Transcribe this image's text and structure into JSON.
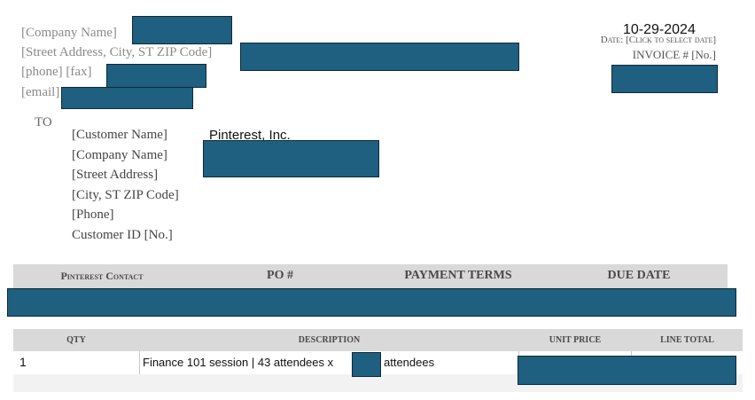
{
  "sender": {
    "company": "[Company Name]",
    "street": "[Street Address, City, ST  ZIP Code]",
    "phone_fax": "[phone]  [fax]",
    "email": "[email]"
  },
  "invoice_meta": {
    "date_value": "10-29-2024",
    "date_label": "Date: [Click to select date]",
    "invoice_no": "INVOICE # [No.]"
  },
  "to": {
    "label": "TO",
    "customer_name": "[Customer Name]",
    "company_name": "[Company Name]",
    "street": "[Street Address]",
    "city": "[City, ST  ZIP Code]",
    "phone": "[Phone]",
    "customer_id": "Customer ID [No.]",
    "filled_customer": "Pinterest, Inc."
  },
  "info_header": {
    "contact": "Pinterest Contact",
    "po": "PO #",
    "terms": "PAYMENT TERMS",
    "due": "DUE DATE"
  },
  "line_header": {
    "qty": "QTY",
    "desc": "DESCRIPTION",
    "unit": "UNIT PRICE",
    "total": "LINE TOTAL"
  },
  "lines": [
    {
      "qty": "1",
      "desc_before": "Finance 101 session | 43 attendees x",
      "desc_after": "attendees"
    }
  ],
  "colors": {
    "redaction": "#1f5f80",
    "header_bg": "#d9d9d9"
  }
}
